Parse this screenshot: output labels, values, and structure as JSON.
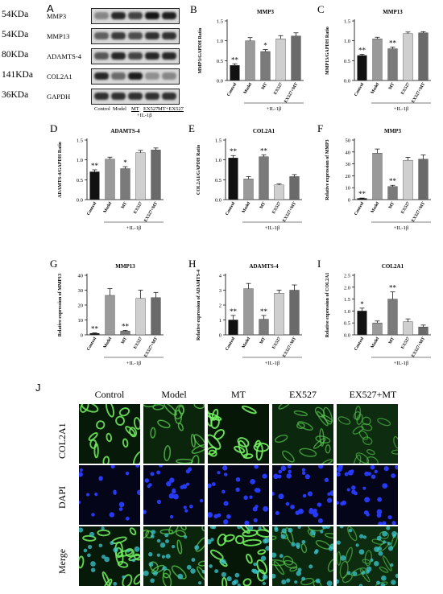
{
  "western_blot": {
    "letter": "A",
    "rows": [
      {
        "kda": "54KDa",
        "name": "MMP3"
      },
      {
        "kda": "54KDa",
        "name": "MMP13"
      },
      {
        "kda": "80KDa",
        "name": "ADAMTS-4"
      },
      {
        "kda": "141KDa",
        "name": "COL2A1"
      },
      {
        "kda": "36KDa",
        "name": "GAPDH"
      }
    ],
    "lanes": [
      "Control",
      "Model",
      "MT",
      "EX527",
      "MT+EX527"
    ],
    "treatment": "+IL-1β",
    "band_intensity": [
      [
        0.35,
        0.85,
        0.7,
        0.95,
        0.9
      ],
      [
        0.55,
        0.75,
        0.65,
        0.8,
        0.8
      ],
      [
        0.6,
        0.85,
        0.7,
        0.85,
        0.85
      ],
      [
        0.85,
        0.5,
        0.9,
        0.3,
        0.35
      ],
      [
        0.8,
        0.8,
        0.8,
        0.8,
        0.8
      ]
    ]
  },
  "treatment_label": "+IL-1β",
  "chart_data": [
    {
      "letter": "B",
      "type": "bar",
      "title": "MMP3",
      "ylabel": "MMP3/GAPDH Ratio",
      "categories": [
        "Control",
        "Model",
        "MT",
        "EX527",
        "EX527+MT"
      ],
      "values": [
        0.38,
        1.0,
        0.73,
        1.05,
        1.12
      ],
      "errors": [
        0.04,
        0.08,
        0.05,
        0.08,
        0.08
      ],
      "stars": [
        "**",
        "",
        "*",
        "",
        ""
      ],
      "ylim": [
        0,
        1.5
      ],
      "yticks": [
        0.0,
        0.5,
        1.0,
        1.5
      ],
      "colors": [
        "#111111",
        "#9a9a9a",
        "#7a7a7a",
        "#cfcfcf",
        "#6a6a6a"
      ]
    },
    {
      "letter": "C",
      "type": "bar",
      "title": "MMP13",
      "ylabel": "MMP13/GAPDH Ratio",
      "categories": [
        "Control",
        "Model",
        "MT",
        "EX527",
        "EX527+MT"
      ],
      "values": [
        0.63,
        1.05,
        0.8,
        1.18,
        1.2
      ],
      "errors": [
        0.03,
        0.04,
        0.04,
        0.04,
        0.03
      ],
      "stars": [
        "**",
        "",
        "**",
        "",
        ""
      ],
      "ylim": [
        0,
        1.5
      ],
      "yticks": [
        0.0,
        0.5,
        1.0,
        1.5
      ],
      "colors": [
        "#111111",
        "#9a9a9a",
        "#7a7a7a",
        "#cfcfcf",
        "#6a6a6a"
      ]
    },
    {
      "letter": "D",
      "type": "bar",
      "title": "ADAMTS-4",
      "ylabel": "ADAMTS-4/GAPDH Ratio",
      "categories": [
        "Control",
        "Model",
        "MT",
        "EX527",
        "EX527+MT"
      ],
      "values": [
        0.7,
        1.02,
        0.78,
        1.18,
        1.25
      ],
      "errors": [
        0.05,
        0.05,
        0.05,
        0.06,
        0.05
      ],
      "stars": [
        "**",
        "",
        "*",
        "",
        ""
      ],
      "ylim": [
        0,
        1.5
      ],
      "yticks": [
        0.0,
        0.5,
        1.0,
        1.5
      ],
      "colors": [
        "#111111",
        "#9a9a9a",
        "#7a7a7a",
        "#cfcfcf",
        "#6a6a6a"
      ]
    },
    {
      "letter": "E",
      "type": "bar",
      "title": "COL2A1",
      "ylabel": "COL2A1/GAPDH Ratio",
      "categories": [
        "Control",
        "Model",
        "MT",
        "EX527",
        "EX527+MT"
      ],
      "values": [
        1.05,
        0.52,
        1.08,
        0.37,
        0.58
      ],
      "errors": [
        0.06,
        0.06,
        0.05,
        0.03,
        0.05
      ],
      "stars": [
        "**",
        "",
        "**",
        "",
        ""
      ],
      "ylim": [
        0,
        1.5
      ],
      "yticks": [
        0.0,
        0.5,
        1.0,
        1.5
      ],
      "colors": [
        "#111111",
        "#9a9a9a",
        "#7a7a7a",
        "#cfcfcf",
        "#6a6a6a"
      ]
    },
    {
      "letter": "F",
      "type": "bar",
      "title": "MMP3",
      "ylabel": "Relative expression of MMP3",
      "categories": [
        "Control",
        "Model",
        "MT",
        "EX527",
        "EX527+MT"
      ],
      "values": [
        1,
        39,
        11,
        33,
        34
      ],
      "errors": [
        0.3,
        3.5,
        1.0,
        2.5,
        3.5
      ],
      "stars": [
        "**",
        "",
        "**",
        "",
        ""
      ],
      "ylim": [
        0,
        50
      ],
      "yticks": [
        0,
        10,
        20,
        30,
        40,
        50
      ],
      "colors": [
        "#111111",
        "#9a9a9a",
        "#7a7a7a",
        "#cfcfcf",
        "#6a6a6a"
      ]
    },
    {
      "letter": "G",
      "type": "bar",
      "title": "MMP13",
      "ylabel": "Relative expression of MMP13",
      "categories": [
        "Control",
        "Model",
        "MT",
        "EX527",
        "EX527+MT"
      ],
      "values": [
        1,
        26.5,
        2.5,
        24.5,
        25
      ],
      "errors": [
        0.3,
        4.5,
        0.5,
        5.5,
        3.5
      ],
      "stars": [
        "**",
        "",
        "**",
        "",
        ""
      ],
      "ylim": [
        0,
        40
      ],
      "yticks": [
        0,
        10,
        20,
        30,
        40
      ],
      "colors": [
        "#111111",
        "#9a9a9a",
        "#7a7a7a",
        "#cfcfcf",
        "#6a6a6a"
      ]
    },
    {
      "letter": "H",
      "type": "bar",
      "title": "ADAMTS-4",
      "ylabel": "Relative expression of ADAMTS-4",
      "categories": [
        "Control",
        "Model",
        "MT",
        "EX527",
        "EX527+MT"
      ],
      "values": [
        1,
        3.1,
        1.05,
        2.8,
        3.0
      ],
      "errors": [
        0.3,
        0.35,
        0.25,
        0.2,
        0.35
      ],
      "stars": [
        "**",
        "",
        "**",
        "",
        ""
      ],
      "ylim": [
        0,
        4
      ],
      "yticks": [
        0,
        1,
        2,
        3,
        4
      ],
      "colors": [
        "#111111",
        "#9a9a9a",
        "#7a7a7a",
        "#cfcfcf",
        "#6a6a6a"
      ]
    },
    {
      "letter": "I",
      "type": "bar",
      "title": "COL2A1",
      "ylabel": "Relative expression of COL2A1",
      "categories": [
        "Control",
        "Model",
        "MT",
        "EX527",
        "EX527+MT"
      ],
      "values": [
        1.0,
        0.5,
        1.5,
        0.55,
        0.33
      ],
      "errors": [
        0.12,
        0.08,
        0.3,
        0.12,
        0.08
      ],
      "stars": [
        "*",
        "",
        "**",
        "",
        ""
      ],
      "ylim": [
        0,
        2.5
      ],
      "yticks": [
        0.0,
        0.5,
        1.0,
        1.5,
        2.0,
        2.5
      ],
      "colors": [
        "#111111",
        "#9a9a9a",
        "#7a7a7a",
        "#cfcfcf",
        "#6a6a6a"
      ]
    }
  ],
  "immunofluorescence": {
    "letter": "J",
    "columns": [
      "Control",
      "Model",
      "MT",
      "EX527",
      "EX527+MT"
    ],
    "rows": [
      "COL2A1",
      "DAPI",
      "Merge"
    ],
    "col2a1_intensity": [
      0.9,
      0.55,
      0.95,
      0.45,
      0.35
    ],
    "dapi_count": [
      18,
      24,
      26,
      30,
      34
    ]
  }
}
